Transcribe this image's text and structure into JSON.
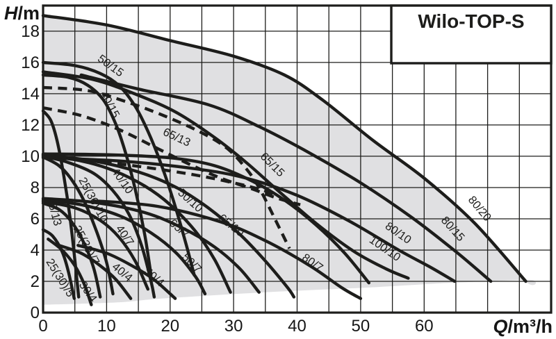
{
  "title": "Wilo-TOP-S",
  "axes": {
    "y_var": "H",
    "y_unit": "/m",
    "x_var": "Q",
    "x_unit": "/m³/h",
    "y_ticks": [
      0,
      2,
      4,
      6,
      8,
      10,
      12,
      14,
      16,
      18
    ],
    "x_ticks": [
      0,
      10,
      20,
      30,
      40,
      50,
      60
    ],
    "y_gridlines": [
      2,
      4,
      6,
      8,
      10,
      12,
      14,
      16,
      18
    ],
    "x_gridlines": [
      5,
      10,
      15,
      20,
      25,
      30,
      35,
      40,
      45,
      50,
      55,
      60,
      65,
      70,
      75
    ]
  },
  "colors": {
    "ink": "#1d1d1b",
    "region_fill": "#e0e0e2",
    "background": "#ffffff"
  },
  "chart_data": {
    "type": "line",
    "title": "Wilo-TOP-S",
    "xlabel": "Q/m³/h",
    "ylabel": "H/m",
    "xlim": [
      0,
      80
    ],
    "ylim": [
      0,
      19.64
    ],
    "grid": true,
    "legend_position": "none",
    "envelope": {
      "points": [
        [
          0,
          19
        ],
        [
          10,
          18.4
        ],
        [
          20,
          17.4
        ],
        [
          30,
          16.4
        ],
        [
          38,
          15.2
        ],
        [
          44,
          13.6
        ],
        [
          52,
          11
        ],
        [
          60,
          8.6
        ],
        [
          68,
          5.7
        ],
        [
          76,
          2
        ],
        [
          76.5,
          2.1
        ],
        [
          64,
          1.9
        ],
        [
          51,
          1.6
        ],
        [
          35,
          1.3
        ],
        [
          18.7,
          0.9
        ],
        [
          11.5,
          0.65
        ],
        [
          0,
          0.5
        ]
      ]
    },
    "series": [
      {
        "name": "80/20",
        "style": "solid",
        "label": {
          "text": "80/20",
          "q": 68.3,
          "h": 6.5,
          "rot": 50
        },
        "points": [
          [
            0,
            19
          ],
          [
            10,
            18.4
          ],
          [
            20,
            17.4
          ],
          [
            30,
            16.4
          ],
          [
            38,
            15.2
          ],
          [
            44,
            13.6
          ],
          [
            52,
            11
          ],
          [
            60,
            8.6
          ],
          [
            68,
            5.7
          ],
          [
            76,
            2
          ]
        ]
      },
      {
        "name": "80/15",
        "style": "solid",
        "label": {
          "text": "80/15",
          "q": 64.1,
          "h": 5.2,
          "rot": 48
        },
        "points": [
          [
            6,
            15.2
          ],
          [
            15,
            14.3
          ],
          [
            26,
            13.3
          ],
          [
            34,
            11.9
          ],
          [
            42,
            10.2
          ],
          [
            50,
            8.3
          ],
          [
            58,
            6.1
          ],
          [
            65,
            3.9
          ],
          [
            70.5,
            2
          ]
        ]
      },
      {
        "name": "65/15",
        "style": "solid",
        "label": {
          "text": "65/15",
          "q": 35.7,
          "h": 9.3,
          "rot": 45
        },
        "points": [
          [
            0,
            15.4
          ],
          [
            8,
            14.9
          ],
          [
            15,
            13.9
          ],
          [
            21,
            12.8
          ],
          [
            27,
            11.2
          ],
          [
            32,
            9.6
          ],
          [
            37,
            7.8
          ],
          [
            43,
            5.7
          ],
          [
            49,
            3.9
          ],
          [
            54,
            2.8
          ],
          [
            57.5,
            2.2
          ]
        ]
      },
      {
        "name": "50/15",
        "style": "solid",
        "label": {
          "text": "50/15",
          "q": 10.3,
          "h": 15.6,
          "rot": 36
        },
        "points": [
          [
            0,
            16
          ],
          [
            5,
            15.8
          ],
          [
            9,
            15.3
          ],
          [
            12,
            14.5
          ],
          [
            14.5,
            13.2
          ],
          [
            16.5,
            11.6
          ],
          [
            18.5,
            9.6
          ],
          [
            20.5,
            7.2
          ],
          [
            22.5,
            4.4
          ],
          [
            23.8,
            2.4
          ]
        ]
      },
      {
        "name": "40/15",
        "style": "solid",
        "label": {
          "text": "40/15",
          "q": 10,
          "h": 13.2,
          "rot": 62
        },
        "points": [
          [
            0,
            15.2
          ],
          [
            4,
            15.05
          ],
          [
            7,
            14.55
          ],
          [
            9.5,
            13.6
          ],
          [
            11.5,
            12
          ],
          [
            13,
            10.2
          ],
          [
            14.5,
            7.9
          ],
          [
            16,
            5
          ],
          [
            17,
            2.4
          ]
        ]
      },
      {
        "name": "25/13",
        "style": "solid",
        "label": {
          "text": "25/13",
          "q": 1.2,
          "h": 6.4,
          "rot": 75
        },
        "points": [
          [
            0,
            12.9
          ],
          [
            1.2,
            12.3
          ],
          [
            2.2,
            11
          ],
          [
            3.2,
            8.9
          ],
          [
            4.2,
            6.2
          ],
          [
            5.1,
            3
          ],
          [
            5.6,
            1
          ]
        ]
      },
      {
        "name": "dashed-upper",
        "style": "dashed",
        "label": null,
        "points": [
          [
            0,
            14.4
          ],
          [
            7,
            14.2
          ],
          [
            13,
            13.5
          ],
          [
            19,
            12.6
          ],
          [
            25,
            11.5
          ],
          [
            29,
            10.5
          ],
          [
            32,
            9.2
          ],
          [
            34,
            8
          ],
          [
            36.5,
            6
          ],
          [
            38.8,
            4.1
          ]
        ]
      },
      {
        "name": "65/13",
        "style": "dashed",
        "label": {
          "text": "65/13",
          "q": 20.8,
          "h": 11,
          "rot": 25
        },
        "points": [
          [
            0,
            13.1
          ],
          [
            6,
            12.6
          ],
          [
            12,
            11.7
          ],
          [
            18,
            10.5
          ],
          [
            23,
            9.5
          ],
          [
            28,
            8.6
          ],
          [
            33,
            7.9
          ],
          [
            37,
            7.3
          ],
          [
            40.5,
            6.9
          ]
        ]
      },
      {
        "name": "dashed-lower",
        "style": "dashed",
        "label": null,
        "points": [
          [
            0,
            10
          ],
          [
            8,
            9.7
          ],
          [
            16,
            9.3
          ],
          [
            24,
            8.8
          ],
          [
            30,
            8.3
          ],
          [
            34,
            7.9
          ],
          [
            37,
            7.5
          ]
        ]
      },
      {
        "name": "100/10",
        "style": "solid",
        "label": {
          "text": "100/10",
          "q": 53.5,
          "h": 3.9,
          "rot": 35
        },
        "points": [
          [
            0,
            10.15
          ],
          [
            10,
            10.1
          ],
          [
            20,
            9.9
          ],
          [
            27,
            9.4
          ],
          [
            33,
            8.4
          ],
          [
            38,
            7.2
          ],
          [
            43,
            5.6
          ],
          [
            47.5,
            3.8
          ],
          [
            51.3,
            1.9
          ]
        ]
      },
      {
        "name": "80/10",
        "style": "solid",
        "label": {
          "text": "80/10",
          "q": 55.6,
          "h": 4.9,
          "rot": 35
        },
        "points": [
          [
            0,
            9.9
          ],
          [
            12,
            9.7
          ],
          [
            24,
            9.2
          ],
          [
            32,
            8.6
          ],
          [
            40,
            7.5
          ],
          [
            48,
            5.9
          ],
          [
            56,
            4
          ],
          [
            61,
            2.9
          ],
          [
            64.8,
            2
          ]
        ]
      },
      {
        "name": "65/10",
        "style": "solid",
        "label": {
          "text": "65/10",
          "q": 29.3,
          "h": 5.4,
          "rot": 38
        },
        "points": [
          [
            0,
            10.1
          ],
          [
            8,
            9.7
          ],
          [
            15,
            9
          ],
          [
            21,
            8
          ],
          [
            26,
            6.7
          ],
          [
            31,
            5
          ],
          [
            35,
            3.3
          ],
          [
            38.5,
            1.6
          ],
          [
            39.5,
            1
          ]
        ]
      },
      {
        "name": "50/10",
        "style": "solid",
        "label": {
          "text": "50/10",
          "q": 22.8,
          "h": 7,
          "rot": 42
        },
        "points": [
          [
            0,
            10.05
          ],
          [
            6,
            9.7
          ],
          [
            11,
            9.1
          ],
          [
            16,
            8.1
          ],
          [
            20,
            6.9
          ],
          [
            24,
            5.2
          ],
          [
            27,
            3.4
          ],
          [
            29.5,
            1.3
          ]
        ]
      },
      {
        "name": "40/10",
        "style": "solid",
        "label": {
          "text": "40/10",
          "q": 12,
          "h": 8.3,
          "rot": 55
        },
        "points": [
          [
            0,
            10
          ],
          [
            4,
            9.6
          ],
          [
            8,
            8.9
          ],
          [
            11,
            7.8
          ],
          [
            13.5,
            6.3
          ],
          [
            15.5,
            4.3
          ],
          [
            17,
            2
          ],
          [
            17.5,
            1
          ]
        ]
      },
      {
        "name": "25(30)/10",
        "style": "solid",
        "label": {
          "text": "25(30)/10",
          "q": 7.4,
          "h": 7.1,
          "rot": 62
        },
        "points": [
          [
            0,
            9.95
          ],
          [
            2.5,
            9.4
          ],
          [
            4.5,
            8.5
          ],
          [
            6.5,
            7.1
          ],
          [
            8.5,
            5.1
          ],
          [
            10,
            3.2
          ],
          [
            11,
            1.2
          ]
        ]
      },
      {
        "name": "80/7",
        "style": "solid",
        "label": {
          "text": "80/7",
          "q": 42.1,
          "h": 3,
          "rot": 35
        },
        "points": [
          [
            8,
            7.15
          ],
          [
            18,
            6.8
          ],
          [
            28,
            5.8
          ],
          [
            35,
            4.6
          ],
          [
            42,
            3
          ],
          [
            47,
            1.6
          ],
          [
            50,
            0.9
          ]
        ]
      },
      {
        "name": "65/7",
        "style": "solid",
        "label": {
          "text": "65/7",
          "q": 21.1,
          "h": 5.2,
          "rot": 40
        },
        "points": [
          [
            0,
            7.3
          ],
          [
            8,
            7.05
          ],
          [
            16,
            6.4
          ],
          [
            22,
            5.4
          ],
          [
            27,
            4.2
          ],
          [
            31,
            2.8
          ],
          [
            34,
            1.3
          ]
        ]
      },
      {
        "name": "50/7",
        "style": "solid",
        "label": {
          "text": "50/7",
          "q": 23,
          "h": 3,
          "rot": 45
        },
        "points": [
          [
            0,
            7.2
          ],
          [
            6,
            6.9
          ],
          [
            12,
            6.2
          ],
          [
            17,
            5.1
          ],
          [
            21,
            3.8
          ],
          [
            24,
            2.3
          ],
          [
            25.5,
            1.2
          ]
        ]
      },
      {
        "name": "40/7",
        "style": "solid",
        "label": {
          "text": "40/7",
          "q": 12.4,
          "h": 4.8,
          "rot": 55
        },
        "points": [
          [
            0,
            7.1
          ],
          [
            5,
            6.7
          ],
          [
            9,
            5.9
          ],
          [
            12,
            4.8
          ],
          [
            14.5,
            3.3
          ],
          [
            16.5,
            1.5
          ]
        ]
      },
      {
        "name": "25(30)/7",
        "style": "solid",
        "label": {
          "text": "25(30)/7",
          "q": 6.3,
          "h": 4.2,
          "rot": 62
        },
        "points": [
          [
            0,
            7
          ],
          [
            2.5,
            6.6
          ],
          [
            4.5,
            5.8
          ],
          [
            6.5,
            4.4
          ],
          [
            8,
            2.8
          ],
          [
            9,
            1
          ]
        ]
      },
      {
        "name": "25(30)/5",
        "style": "solid",
        "label": {
          "text": "25(30)/5",
          "q": 2.2,
          "h": 2.1,
          "rot": 58
        },
        "points": [
          [
            0,
            5.3
          ],
          [
            1.5,
            4.9
          ],
          [
            3,
            3.9
          ],
          [
            4,
            2.6
          ],
          [
            4.9,
            0.9
          ]
        ]
      },
      {
        "name": "30/4",
        "style": "solid",
        "label": {
          "text": "30/4",
          "q": 6.6,
          "h": 1.2,
          "rot": 55
        },
        "points": [
          [
            0.8,
            4.7
          ],
          [
            3,
            4
          ],
          [
            5,
            3
          ],
          [
            6.5,
            1.8
          ],
          [
            7.6,
            0.5
          ]
        ]
      },
      {
        "name": "40/4",
        "style": "solid",
        "label": {
          "text": "40/4",
          "q": 12.1,
          "h": 2.4,
          "rot": 40
        },
        "points": [
          [
            2.5,
            4.3
          ],
          [
            6,
            3.8
          ],
          [
            9,
            3
          ],
          [
            11.5,
            2.1
          ],
          [
            13.8,
            0.9
          ]
        ]
      },
      {
        "name": "50/4",
        "style": "solid",
        "label": {
          "text": "50/4",
          "q": 17.1,
          "h": 2.1,
          "rot": 42
        },
        "points": [
          [
            5.5,
            4.3
          ],
          [
            10,
            3.8
          ],
          [
            14,
            3
          ],
          [
            17.5,
            2.1
          ],
          [
            20.8,
            0.9
          ]
        ]
      }
    ]
  }
}
